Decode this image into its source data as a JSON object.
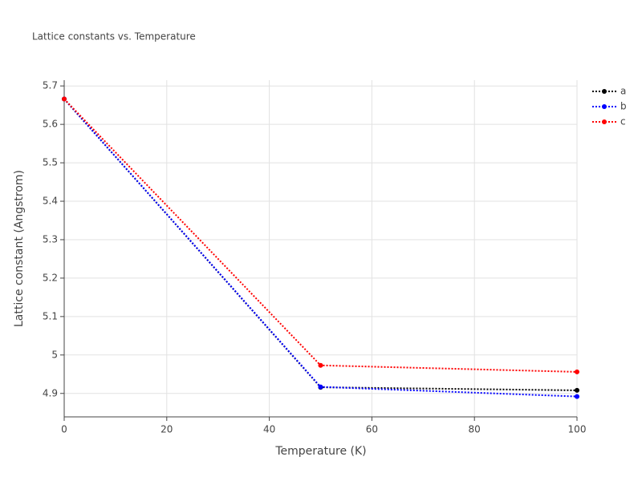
{
  "chart_data": {
    "type": "line",
    "title": "Lattice constants vs. Temperature",
    "x_label": "Temperature (K)",
    "y_label": "Lattice constant (Angstrom)",
    "x": [
      0,
      50,
      100
    ],
    "series": [
      {
        "name": "a",
        "color": "#000000",
        "values": [
          5.666,
          4.916,
          4.908
        ]
      },
      {
        "name": "b",
        "color": "#0000ff",
        "values": [
          5.666,
          4.917,
          4.892
        ]
      },
      {
        "name": "c",
        "color": "#ff0000",
        "values": [
          5.666,
          4.973,
          4.956
        ]
      }
    ],
    "xlim": [
      0,
      100
    ],
    "xticks": [
      0,
      20,
      40,
      60,
      80,
      100
    ],
    "ylim": [
      4.839,
      5.715
    ],
    "yticks": [
      4.9,
      5,
      5.1,
      5.2,
      5.3,
      5.4,
      5.5,
      5.6,
      5.7
    ],
    "grid": true,
    "legend": "top-right"
  }
}
